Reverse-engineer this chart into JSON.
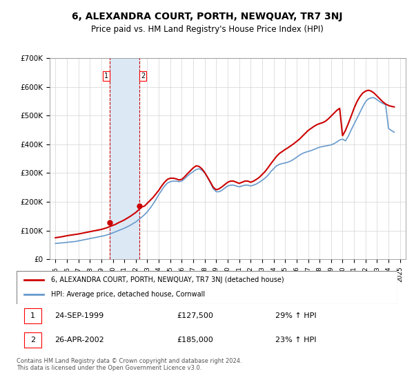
{
  "title": "6, ALEXANDRA COURT, PORTH, NEWQUAY, TR7 3NJ",
  "subtitle": "Price paid vs. HM Land Registry's House Price Index (HPI)",
  "legend_label_red": "6, ALEXANDRA COURT, PORTH, NEWQUAY, TR7 3NJ (detached house)",
  "legend_label_blue": "HPI: Average price, detached house, Cornwall",
  "red_color": "#cc0000",
  "blue_color": "#6699cc",
  "transaction_color_bg": "#dde8f5",
  "transaction_vline_color": "#cc0000",
  "footer": "Contains HM Land Registry data © Crown copyright and database right 2024.\nThis data is licensed under the Open Government Licence v3.0.",
  "transactions": [
    {
      "num": 1,
      "date": "24-SEP-1999",
      "price": "£127,500",
      "change": "29% ↑ HPI",
      "x_year": 1999.73
    },
    {
      "num": 2,
      "date": "26-APR-2002",
      "price": "£185,000",
      "change": "23% ↑ HPI",
      "x_year": 2002.32
    }
  ],
  "ylim": [
    0,
    700000
  ],
  "yticks": [
    0,
    100000,
    200000,
    300000,
    400000,
    500000,
    600000,
    700000
  ],
  "ytick_labels": [
    "£0",
    "£100K",
    "£200K",
    "£300K",
    "£400K",
    "£500K",
    "£600K",
    "£700K"
  ],
  "xlim_start": 1994.5,
  "xlim_end": 2025.5,
  "xtick_years": [
    1995,
    1996,
    1997,
    1998,
    1999,
    2000,
    2001,
    2002,
    2003,
    2004,
    2005,
    2006,
    2007,
    2008,
    2009,
    2010,
    2011,
    2012,
    2013,
    2014,
    2015,
    2016,
    2017,
    2018,
    2019,
    2020,
    2021,
    2022,
    2023,
    2024,
    2025
  ],
  "hpi_data": {
    "years": [
      1995,
      1995.25,
      1995.5,
      1995.75,
      1996,
      1996.25,
      1996.5,
      1996.75,
      1997,
      1997.25,
      1997.5,
      1997.75,
      1998,
      1998.25,
      1998.5,
      1998.75,
      1999,
      1999.25,
      1999.5,
      1999.75,
      2000,
      2000.25,
      2000.5,
      2000.75,
      2001,
      2001.25,
      2001.5,
      2001.75,
      2002,
      2002.25,
      2002.5,
      2002.75,
      2003,
      2003.25,
      2003.5,
      2003.75,
      2004,
      2004.25,
      2004.5,
      2004.75,
      2005,
      2005.25,
      2005.5,
      2005.75,
      2006,
      2006.25,
      2006.5,
      2006.75,
      2007,
      2007.25,
      2007.5,
      2007.75,
      2008,
      2008.25,
      2008.5,
      2008.75,
      2009,
      2009.25,
      2009.5,
      2009.75,
      2010,
      2010.25,
      2010.5,
      2010.75,
      2011,
      2011.25,
      2011.5,
      2011.75,
      2012,
      2012.25,
      2012.5,
      2012.75,
      2013,
      2013.25,
      2013.5,
      2013.75,
      2014,
      2014.25,
      2014.5,
      2014.75,
      2015,
      2015.25,
      2015.5,
      2015.75,
      2016,
      2016.25,
      2016.5,
      2016.75,
      2017,
      2017.25,
      2017.5,
      2017.75,
      2018,
      2018.25,
      2018.5,
      2018.75,
      2019,
      2019.25,
      2019.5,
      2019.75,
      2020,
      2020.25,
      2020.5,
      2020.75,
      2021,
      2021.25,
      2021.5,
      2021.75,
      2022,
      2022.25,
      2022.5,
      2022.75,
      2023,
      2023.25,
      2023.5,
      2023.75,
      2024,
      2024.25,
      2024.5
    ],
    "values": [
      55000,
      56000,
      57000,
      57500,
      59000,
      60000,
      61000,
      62000,
      64000,
      66000,
      68000,
      70000,
      72000,
      74000,
      76000,
      78000,
      80000,
      82000,
      85000,
      88000,
      92000,
      96000,
      100000,
      104000,
      108000,
      113000,
      118000,
      124000,
      130000,
      138000,
      146000,
      155000,
      165000,
      178000,
      192000,
      208000,
      225000,
      240000,
      255000,
      265000,
      270000,
      272000,
      272000,
      270000,
      272000,
      280000,
      290000,
      298000,
      305000,
      312000,
      315000,
      310000,
      300000,
      285000,
      265000,
      245000,
      235000,
      235000,
      240000,
      248000,
      255000,
      258000,
      258000,
      255000,
      252000,
      255000,
      258000,
      258000,
      255000,
      258000,
      262000,
      268000,
      275000,
      282000,
      292000,
      305000,
      315000,
      325000,
      330000,
      333000,
      335000,
      338000,
      342000,
      348000,
      355000,
      362000,
      368000,
      372000,
      375000,
      378000,
      382000,
      386000,
      390000,
      392000,
      394000,
      396000,
      398000,
      402000,
      408000,
      415000,
      418000,
      412000,
      428000,
      450000,
      470000,
      490000,
      510000,
      530000,
      548000,
      558000,
      562000,
      562000,
      555000,
      548000,
      542000,
      538000,
      455000,
      448000,
      442000
    ]
  },
  "price_data": {
    "years": [
      1995,
      1995.5,
      1996,
      1996.5,
      1997,
      1997.5,
      1998,
      1998.5,
      1999,
      1999.25,
      1999.5,
      1999.75,
      2000,
      2000.25,
      2000.5,
      2000.75,
      2001,
      2001.25,
      2001.5,
      2001.75,
      2002,
      2002.25,
      2002.5,
      2002.75,
      2003,
      2003.5,
      2004,
      2004.25,
      2004.5,
      2004.75,
      2005,
      2005.25,
      2005.5,
      2005.75,
      2006,
      2006.25,
      2006.5,
      2006.75,
      2007,
      2007.25,
      2007.5,
      2007.75,
      2008,
      2008.25,
      2008.5,
      2008.75,
      2009,
      2009.25,
      2009.5,
      2009.75,
      2010,
      2010.25,
      2010.5,
      2010.75,
      2011,
      2011.25,
      2011.5,
      2011.75,
      2012,
      2012.25,
      2012.5,
      2012.75,
      2013,
      2013.25,
      2013.5,
      2013.75,
      2014,
      2014.25,
      2014.5,
      2014.75,
      2015,
      2015.25,
      2015.5,
      2015.75,
      2016,
      2016.25,
      2016.5,
      2016.75,
      2017,
      2017.25,
      2017.5,
      2017.75,
      2018,
      2018.25,
      2018.5,
      2018.75,
      2019,
      2019.25,
      2019.5,
      2019.75,
      2020,
      2020.25,
      2020.5,
      2020.75,
      2021,
      2021.25,
      2021.5,
      2021.75,
      2022,
      2022.25,
      2022.5,
      2022.75,
      2023,
      2023.25,
      2023.5,
      2023.75,
      2024,
      2024.25,
      2024.5
    ],
    "values": [
      75000,
      78000,
      82000,
      85000,
      88000,
      92000,
      96000,
      100000,
      104000,
      107000,
      110000,
      114000,
      118000,
      122000,
      127500,
      132000,
      137000,
      143000,
      149000,
      156000,
      163000,
      172000,
      182000,
      185000,
      195000,
      215000,
      240000,
      255000,
      268000,
      278000,
      282000,
      282000,
      280000,
      276000,
      278000,
      287000,
      298000,
      308000,
      318000,
      325000,
      323000,
      315000,
      302000,
      285000,
      268000,
      250000,
      242000,
      245000,
      252000,
      260000,
      268000,
      272000,
      272000,
      268000,
      264000,
      268000,
      272000,
      272000,
      268000,
      272000,
      278000,
      285000,
      295000,
      305000,
      318000,
      332000,
      345000,
      358000,
      368000,
      375000,
      382000,
      388000,
      395000,
      402000,
      410000,
      418000,
      428000,
      438000,
      448000,
      455000,
      462000,
      468000,
      472000,
      475000,
      480000,
      488000,
      498000,
      508000,
      518000,
      525000,
      430000,
      448000,
      472000,
      498000,
      525000,
      548000,
      565000,
      578000,
      585000,
      588000,
      585000,
      578000,
      568000,
      558000,
      548000,
      540000,
      535000,
      532000,
      530000
    ]
  }
}
